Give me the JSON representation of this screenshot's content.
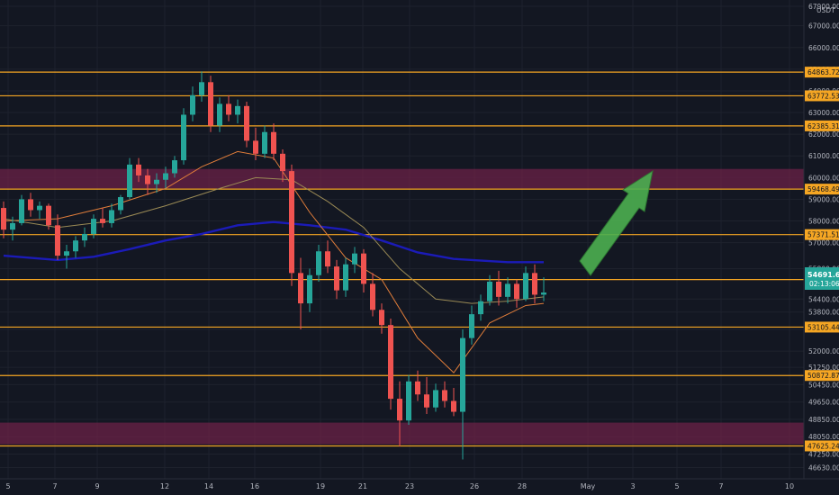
{
  "chart_data": {
    "type": "candlestick",
    "symbol_currency": "USDT",
    "current_price": "54691.66",
    "countdown": "02:13:06",
    "ylim": [
      46400,
      67900
    ],
    "y_ticks": [
      "67900.00",
      "67000.00",
      "66000.00",
      "65000.00",
      "64000.00",
      "63000.00",
      "62000.00",
      "61000.00",
      "60000.00",
      "59000.00",
      "58000.00",
      "57000.00",
      "55800.00",
      "54400.00",
      "53800.00",
      "53000.00",
      "52000.00",
      "51250.00",
      "50450.00",
      "49650.00",
      "48850.00",
      "48050.00",
      "47250.00",
      "46630.00"
    ],
    "x_ticks": [
      "5",
      "7",
      "9",
      "12",
      "14",
      "16",
      "19",
      "21",
      "23",
      "26",
      "28",
      "May",
      "3",
      "5",
      "7",
      "10"
    ],
    "horizontal_levels": [
      "64863.72",
      "63772.53",
      "62385.31",
      "59468.49",
      "57371.51",
      "55297.82",
      "53105.44",
      "50872.87",
      "47625.24"
    ],
    "zones": [
      {
        "from": 59500,
        "to": 60400
      },
      {
        "from": 47700,
        "to": 48700
      }
    ],
    "candles": [
      {
        "o": 58600,
        "h": 58900,
        "l": 57200,
        "c": 57600
      },
      {
        "o": 57600,
        "h": 58200,
        "l": 57100,
        "c": 57900
      },
      {
        "o": 57900,
        "h": 59200,
        "l": 57800,
        "c": 59000
      },
      {
        "o": 59000,
        "h": 59300,
        "l": 58200,
        "c": 58500
      },
      {
        "o": 58500,
        "h": 58900,
        "l": 58100,
        "c": 58700
      },
      {
        "o": 58700,
        "h": 58800,
        "l": 57600,
        "c": 57800
      },
      {
        "o": 57800,
        "h": 58300,
        "l": 56200,
        "c": 56400
      },
      {
        "o": 56400,
        "h": 56900,
        "l": 55800,
        "c": 56600
      },
      {
        "o": 56600,
        "h": 57300,
        "l": 56300,
        "c": 57100
      },
      {
        "o": 57100,
        "h": 57700,
        "l": 56800,
        "c": 57400
      },
      {
        "o": 57400,
        "h": 58300,
        "l": 57200,
        "c": 58100
      },
      {
        "o": 58100,
        "h": 58600,
        "l": 57700,
        "c": 57900
      },
      {
        "o": 57900,
        "h": 58800,
        "l": 57700,
        "c": 58500
      },
      {
        "o": 58500,
        "h": 59200,
        "l": 58300,
        "c": 59100
      },
      {
        "o": 59100,
        "h": 60900,
        "l": 59000,
        "c": 60600
      },
      {
        "o": 60600,
        "h": 60900,
        "l": 59800,
        "c": 60100
      },
      {
        "o": 60100,
        "h": 60400,
        "l": 59200,
        "c": 59700
      },
      {
        "o": 59700,
        "h": 60200,
        "l": 59300,
        "c": 59900
      },
      {
        "o": 59900,
        "h": 60500,
        "l": 59500,
        "c": 60200
      },
      {
        "o": 60200,
        "h": 61000,
        "l": 60000,
        "c": 60800
      },
      {
        "o": 60800,
        "h": 63200,
        "l": 60600,
        "c": 62900
      },
      {
        "o": 62900,
        "h": 64200,
        "l": 62600,
        "c": 63800
      },
      {
        "o": 63800,
        "h": 64900,
        "l": 63500,
        "c": 64400
      },
      {
        "o": 64400,
        "h": 64700,
        "l": 62100,
        "c": 62400
      },
      {
        "o": 62400,
        "h": 63700,
        "l": 62100,
        "c": 63400
      },
      {
        "o": 63400,
        "h": 63800,
        "l": 62600,
        "c": 62900
      },
      {
        "o": 62900,
        "h": 63600,
        "l": 62500,
        "c": 63300
      },
      {
        "o": 63300,
        "h": 63500,
        "l": 61400,
        "c": 61700
      },
      {
        "o": 61700,
        "h": 62300,
        "l": 60800,
        "c": 61100
      },
      {
        "o": 61100,
        "h": 62400,
        "l": 60900,
        "c": 62100
      },
      {
        "o": 62100,
        "h": 62500,
        "l": 60800,
        "c": 61100
      },
      {
        "o": 61100,
        "h": 61300,
        "l": 59800,
        "c": 60300
      },
      {
        "o": 60300,
        "h": 60600,
        "l": 55000,
        "c": 55600
      },
      {
        "o": 55600,
        "h": 56300,
        "l": 53000,
        "c": 54200
      },
      {
        "o": 54200,
        "h": 55800,
        "l": 53800,
        "c": 55500
      },
      {
        "o": 55500,
        "h": 56900,
        "l": 55200,
        "c": 56600
      },
      {
        "o": 56600,
        "h": 57100,
        "l": 55600,
        "c": 55900
      },
      {
        "o": 55900,
        "h": 56200,
        "l": 54400,
        "c": 54800
      },
      {
        "o": 54800,
        "h": 56300,
        "l": 54500,
        "c": 56000
      },
      {
        "o": 56000,
        "h": 56800,
        "l": 55600,
        "c": 56500
      },
      {
        "o": 56500,
        "h": 56700,
        "l": 54700,
        "c": 55100
      },
      {
        "o": 55100,
        "h": 55600,
        "l": 53600,
        "c": 53900
      },
      {
        "o": 53900,
        "h": 54200,
        "l": 52800,
        "c": 53200
      },
      {
        "o": 53200,
        "h": 53500,
        "l": 49300,
        "c": 49800
      },
      {
        "o": 49800,
        "h": 50600,
        "l": 47600,
        "c": 48800
      },
      {
        "o": 48800,
        "h": 50900,
        "l": 48600,
        "c": 50600
      },
      {
        "o": 50600,
        "h": 51100,
        "l": 49700,
        "c": 50000
      },
      {
        "o": 50000,
        "h": 50800,
        "l": 49100,
        "c": 49400
      },
      {
        "o": 49400,
        "h": 50500,
        "l": 49200,
        "c": 50200
      },
      {
        "o": 50200,
        "h": 50600,
        "l": 49400,
        "c": 49700
      },
      {
        "o": 49700,
        "h": 50300,
        "l": 49000,
        "c": 49200
      },
      {
        "o": 49200,
        "h": 53000,
        "l": 47000,
        "c": 52600
      },
      {
        "o": 52600,
        "h": 54100,
        "l": 52300,
        "c": 53700
      },
      {
        "o": 53700,
        "h": 54600,
        "l": 53400,
        "c": 54300
      },
      {
        "o": 54300,
        "h": 55500,
        "l": 54100,
        "c": 55200
      },
      {
        "o": 55200,
        "h": 55700,
        "l": 54100,
        "c": 54500
      },
      {
        "o": 54500,
        "h": 55400,
        "l": 54200,
        "c": 55100
      },
      {
        "o": 55100,
        "h": 55300,
        "l": 54000,
        "c": 54400
      },
      {
        "o": 54400,
        "h": 55900,
        "l": 54300,
        "c": 55600
      },
      {
        "o": 55600,
        "h": 56000,
        "l": 54200,
        "c": 54600
      },
      {
        "o": 54600,
        "h": 55400,
        "l": 54300,
        "c": 54700
      }
    ],
    "moving_averages": [
      {
        "color": "#1b1bb8",
        "values": [
          [
            0,
            56400
          ],
          [
            6,
            56200
          ],
          [
            10,
            56350
          ],
          [
            14,
            56700
          ],
          [
            18,
            57100
          ],
          [
            22,
            57400
          ],
          [
            26,
            57800
          ],
          [
            30,
            57950
          ],
          [
            34,
            57800
          ],
          [
            38,
            57600
          ],
          [
            42,
            57100
          ],
          [
            46,
            56550
          ],
          [
            50,
            56250
          ],
          [
            56,
            56100
          ],
          [
            60,
            56100
          ]
        ]
      },
      {
        "color": "#e07d3a",
        "values": [
          [
            0,
            58000
          ],
          [
            6,
            58100
          ],
          [
            12,
            58700
          ],
          [
            18,
            59500
          ],
          [
            22,
            60500
          ],
          [
            26,
            61200
          ],
          [
            30,
            60900
          ],
          [
            34,
            58400
          ],
          [
            38,
            56300
          ],
          [
            42,
            55300
          ],
          [
            46,
            52600
          ],
          [
            50,
            51000
          ],
          [
            54,
            53300
          ],
          [
            58,
            54100
          ],
          [
            60,
            54200
          ]
        ]
      },
      {
        "color": "#9a8a55",
        "values": [
          [
            0,
            58100
          ],
          [
            6,
            57700
          ],
          [
            12,
            58000
          ],
          [
            18,
            58700
          ],
          [
            24,
            59500
          ],
          [
            28,
            60000
          ],
          [
            32,
            59900
          ],
          [
            36,
            58900
          ],
          [
            40,
            57700
          ],
          [
            44,
            55800
          ],
          [
            48,
            54400
          ],
          [
            52,
            54200
          ],
          [
            56,
            54300
          ],
          [
            60,
            54500
          ]
        ]
      }
    ]
  }
}
